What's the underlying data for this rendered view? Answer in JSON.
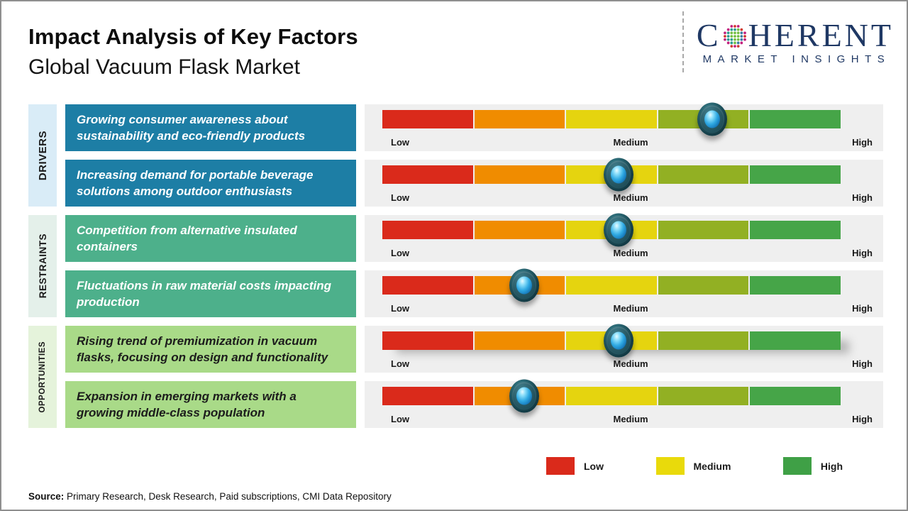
{
  "header": {
    "title": "Impact Analysis of Key Factors",
    "subtitle": "Global Vacuum Flask Market"
  },
  "logo": {
    "name": "Coherent Market Insights",
    "word_start": "C",
    "word_end": "HERENT",
    "tagline": "MARKET INSIGHTS",
    "navy": "#1f3864"
  },
  "groups": [
    {
      "id": "drivers",
      "label": "DRIVERS",
      "label_bg": "#d9ecf7",
      "box_bg": "#1d7ea5",
      "box_text": "#ffffff"
    },
    {
      "id": "restraints",
      "label": "RESTRAINTS",
      "label_bg": "#e4f0ea",
      "box_bg": "#4db08b",
      "box_text": "#ffffff"
    },
    {
      "id": "opportunities",
      "label": "OPPORTUNITIES",
      "label_bg": "#e5f3db",
      "box_bg": "#a9da88",
      "box_text": "#1c1c1c"
    }
  ],
  "rows": [
    {
      "group": 0,
      "text": "Growing consumer awareness about sustainability and eco-friendly products",
      "impact_pct": 72,
      "shadow": false
    },
    {
      "group": 0,
      "text": "Increasing demand for portable beverage solutions among outdoor enthusiasts",
      "impact_pct": 51.5,
      "shadow": false
    },
    {
      "group": 1,
      "text": "Competition from alternative insulated containers",
      "impact_pct": 51.5,
      "shadow": false
    },
    {
      "group": 1,
      "text": "Fluctuations in raw material costs impacting production",
      "impact_pct": 31,
      "shadow": false
    },
    {
      "group": 2,
      "text": "Rising trend of premiumization in vacuum flasks, focusing on design and functionality",
      "impact_pct": 51.5,
      "shadow": true
    },
    {
      "group": 2,
      "text": "Expansion in emerging markets with a growing middle-class population",
      "impact_pct": 31,
      "shadow": false
    }
  ],
  "impact_scale": {
    "segment_colors": [
      "#da2a1b",
      "#f08c00",
      "#e5d40f",
      "#92b023",
      "#46a548"
    ],
    "track_bg": "#efefef",
    "labels": {
      "low": "Low",
      "medium": "Medium",
      "high": "High"
    }
  },
  "legend": [
    {
      "label": "Low",
      "color": "#da2a1b"
    },
    {
      "label": "Medium",
      "color": "#e9da0b"
    },
    {
      "label": "High",
      "color": "#3fa046"
    }
  ],
  "source": {
    "label": "Source:",
    "text": "Primary Research, Desk Research, Paid subscriptions, CMI Data Repository"
  },
  "chart_data": {
    "type": "bar",
    "title": "Impact Analysis of Key Factors",
    "subtitle": "Global Vacuum Flask Market",
    "scale": [
      "Low",
      "Medium",
      "High"
    ],
    "axis_range_pct": [
      0,
      100
    ],
    "legend_position": "bottom",
    "series": [
      {
        "category": "Drivers",
        "factor": "Growing consumer awareness about sustainability and eco-friendly products",
        "impact_pct": 72,
        "impact_level": "Medium-High"
      },
      {
        "category": "Drivers",
        "factor": "Increasing demand for portable beverage solutions among outdoor enthusiasts",
        "impact_pct": 51.5,
        "impact_level": "Medium"
      },
      {
        "category": "Restraints",
        "factor": "Competition from alternative insulated containers",
        "impact_pct": 51.5,
        "impact_level": "Medium"
      },
      {
        "category": "Restraints",
        "factor": "Fluctuations in raw material costs impacting production",
        "impact_pct": 31,
        "impact_level": "Low-Medium"
      },
      {
        "category": "Opportunities",
        "factor": "Rising trend of premiumization in vacuum flasks, focusing on design and functionality",
        "impact_pct": 51.5,
        "impact_level": "Medium"
      },
      {
        "category": "Opportunities",
        "factor": "Expansion in emerging markets with a growing middle-class population",
        "impact_pct": 31,
        "impact_level": "Low-Medium"
      }
    ]
  }
}
